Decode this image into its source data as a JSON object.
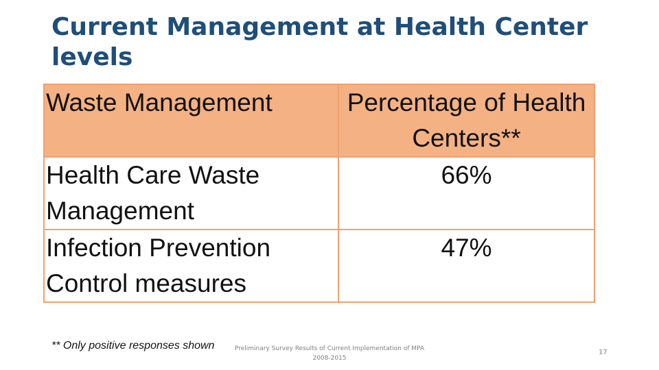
{
  "slide": {
    "title": "Current Management at Health Center levels",
    "table": {
      "headers": [
        "Waste Management",
        "Percentage of Health Centers**"
      ],
      "rows": [
        [
          "Health Care Waste Management",
          "66%"
        ],
        [
          "Infection Prevention Control measures",
          "47%"
        ]
      ]
    },
    "footnote": "** Only positive responses shown",
    "footer": {
      "line1": "Preliminary Survey Results of Current Implementation of MPA",
      "line2": "2008-2015"
    },
    "page_number": "17"
  },
  "colors": {
    "title": "#1f4e79",
    "header_fill": "#f4b183",
    "border": "#f0a06e"
  }
}
